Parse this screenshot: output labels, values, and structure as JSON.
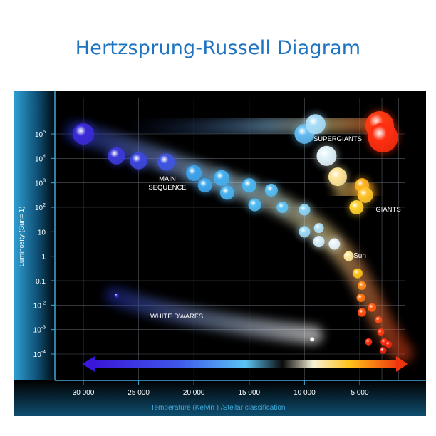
{
  "title": "Hertzsprung-Russell Diagram",
  "axes": {
    "y_label": "Luminosity (Sun= 1)",
    "x_label": "Temperature (Kelvin ) /Stellar classification",
    "y_ticks": [
      {
        "base": "10",
        "exp": "5",
        "value": 5
      },
      {
        "base": "10",
        "exp": "4",
        "value": 4
      },
      {
        "base": "10",
        "exp": "3",
        "value": 3
      },
      {
        "base": "10",
        "exp": "2",
        "value": 2
      },
      {
        "base": "10",
        "exp": "",
        "value": 1
      },
      {
        "base": "1",
        "exp": "",
        "value": 0
      },
      {
        "base": "0.1",
        "exp": "",
        "value": -1
      },
      {
        "base": "10",
        "exp": "-2",
        "value": -2
      },
      {
        "base": "10",
        "exp": "-3",
        "value": -3
      },
      {
        "base": "10",
        "exp": "-4",
        "value": -4
      }
    ],
    "x_ticks": [
      {
        "label": "30 000",
        "value": 30000
      },
      {
        "label": "25 000",
        "value": 25000
      },
      {
        "label": "20 000",
        "value": 20000
      },
      {
        "label": "15 000",
        "value": 15000
      },
      {
        "label": "10 000",
        "value": 10000
      },
      {
        "label": "5 000",
        "value": 5000
      }
    ]
  },
  "region_labels": {
    "main_sequence_line1": "MAIN",
    "main_sequence_line2": "SEQUENCE",
    "supergiants": "SUPERGIANTS",
    "giants": "GIANTS",
    "white_dwarfs": "WHITE DWARFS",
    "sun": "Sun"
  },
  "colors": {
    "title": "#1f74c2",
    "axis_text": "#3fa9d8",
    "plot_background": "#000000",
    "hot_star": "#3a2fd8",
    "sun_star": "#ffd23a",
    "cool_star": "#e83a10"
  },
  "stars": [
    {
      "group": "main-sequence",
      "temp": 30000,
      "lum": 5.0,
      "color": "#3a2bd6",
      "size": 15
    },
    {
      "group": "main-sequence",
      "temp": 27000,
      "lum": 4.1,
      "color": "#3b3ad8",
      "size": 12
    },
    {
      "group": "main-sequence",
      "temp": 25000,
      "lum": 3.9,
      "color": "#3d47dd",
      "size": 12
    },
    {
      "group": "main-sequence",
      "temp": 22500,
      "lum": 3.85,
      "color": "#3f55e0",
      "size": 12
    },
    {
      "group": "main-sequence",
      "temp": 20000,
      "lum": 3.4,
      "color": "#3fa3ea",
      "size": 11
    },
    {
      "group": "main-sequence",
      "temp": 19000,
      "lum": 2.9,
      "color": "#40a6ec",
      "size": 10
    },
    {
      "group": "main-sequence",
      "temp": 17500,
      "lum": 3.2,
      "color": "#45aeee",
      "size": 11
    },
    {
      "group": "main-sequence",
      "temp": 17000,
      "lum": 2.6,
      "color": "#48b2f0",
      "size": 10
    },
    {
      "group": "main-sequence",
      "temp": 15000,
      "lum": 2.9,
      "color": "#4cb6f0",
      "size": 10
    },
    {
      "group": "main-sequence",
      "temp": 14500,
      "lum": 2.1,
      "color": "#52baf2",
      "size": 9
    },
    {
      "group": "main-sequence",
      "temp": 13000,
      "lum": 2.7,
      "color": "#57bdf2",
      "size": 9
    },
    {
      "group": "main-sequence",
      "temp": 12000,
      "lum": 2.0,
      "color": "#62c2f3",
      "size": 8
    },
    {
      "group": "main-sequence",
      "temp": 10000,
      "lum": 1.9,
      "color": "#8ad3f6",
      "size": 8
    },
    {
      "group": "main-sequence",
      "temp": 10000,
      "lum": 1.0,
      "color": "#9cdaf7",
      "size": 8
    },
    {
      "group": "main-sequence",
      "temp": 8700,
      "lum": 1.15,
      "color": "#aee1f8",
      "size": 7
    },
    {
      "group": "main-sequence",
      "temp": 8700,
      "lum": 0.6,
      "color": "#d4eefa",
      "size": 8
    },
    {
      "group": "main-sequence",
      "temp": 7300,
      "lum": 0.5,
      "color": "#e8f4fb",
      "size": 8
    },
    {
      "group": "main-sequence",
      "temp": 6000,
      "lum": 0.0,
      "color": "#ffe9a0",
      "size": 7
    },
    {
      "group": "main-sequence",
      "temp": 5200,
      "lum": -0.7,
      "color": "#ffc21a",
      "size": 7
    },
    {
      "group": "main-sequence",
      "temp": 4800,
      "lum": -1.2,
      "color": "#ff8a18",
      "size": 6
    },
    {
      "group": "main-sequence",
      "temp": 4900,
      "lum": -1.7,
      "color": "#ff7414",
      "size": 6
    },
    {
      "group": "main-sequence",
      "temp": 3900,
      "lum": -2.1,
      "color": "#ff5a12",
      "size": 6
    },
    {
      "group": "main-sequence",
      "temp": 4800,
      "lum": -2.3,
      "color": "#ff5010",
      "size": 6
    },
    {
      "group": "main-sequence",
      "temp": 3300,
      "lum": -2.6,
      "color": "#ff4a10",
      "size": 5
    },
    {
      "group": "main-sequence",
      "temp": 3100,
      "lum": -3.1,
      "color": "#ff3a10",
      "size": 5
    },
    {
      "group": "main-sequence",
      "temp": 4200,
      "lum": -3.5,
      "color": "#ff3010",
      "size": 5
    },
    {
      "group": "main-sequence",
      "temp": 2800,
      "lum": -3.5,
      "color": "#ff2a0e",
      "size": 5
    },
    {
      "group": "main-sequence",
      "temp": 2400,
      "lum": -3.6,
      "color": "#f0260c",
      "size": 5
    },
    {
      "group": "main-sequence",
      "temp": 2900,
      "lum": -3.85,
      "color": "#e8220c",
      "size": 5
    },
    {
      "group": "supergiants",
      "temp": 10000,
      "lum": 5.0,
      "color": "#60b9f0",
      "size": 14
    },
    {
      "group": "supergiants",
      "temp": 9000,
      "lum": 5.4,
      "color": "#a8dcf6",
      "size": 14
    },
    {
      "group": "supergiants",
      "temp": 8000,
      "lum": 4.1,
      "color": "#e4f4fb",
      "size": 14
    },
    {
      "group": "supergiants",
      "temp": 7000,
      "lum": 3.25,
      "color": "#ffe69a",
      "size": 13
    },
    {
      "group": "supergiants",
      "temp": 3200,
      "lum": 5.35,
      "color": "#ff3a12",
      "size": 20
    },
    {
      "group": "supergiants",
      "temp": 2900,
      "lum": 4.85,
      "color": "#ff2e10",
      "size": 21
    },
    {
      "group": "giants",
      "temp": 4800,
      "lum": 2.9,
      "color": "#ffb020",
      "size": 10
    },
    {
      "group": "giants",
      "temp": 4500,
      "lum": 2.5,
      "color": "#ffc22a",
      "size": 11
    },
    {
      "group": "giants",
      "temp": 5300,
      "lum": 2.0,
      "color": "#ffd030",
      "size": 10
    },
    {
      "group": "white-dwarfs",
      "temp": 27000,
      "lum": -1.6,
      "color": "#3a2bd6",
      "size": 3
    },
    {
      "group": "white-dwarfs",
      "temp": 9300,
      "lum": -3.4,
      "color": "#ffffff",
      "size": 3
    }
  ]
}
